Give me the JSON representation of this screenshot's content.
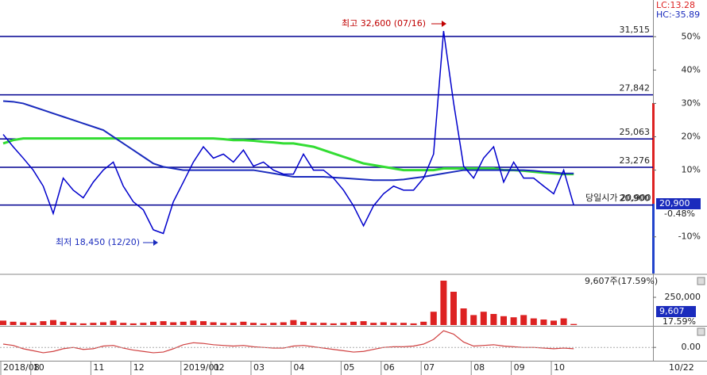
{
  "chart_data": [
    {
      "type": "line",
      "categories": [
        "2018/08",
        null,
        null,
        "10",
        null,
        null,
        null,
        null,
        null,
        "11",
        null,
        null,
        null,
        "12",
        null,
        null,
        null,
        null,
        "2019/01",
        null,
        null,
        "02",
        null,
        null,
        null,
        "03",
        null,
        null,
        null,
        "04",
        null,
        null,
        null,
        null,
        "05",
        null,
        null,
        null,
        "06",
        null,
        null,
        null,
        "07",
        null,
        null,
        null,
        null,
        "08",
        null,
        null,
        null,
        "09",
        null,
        null,
        null,
        "10",
        null,
        null
      ],
      "date_label": "10/22",
      "ylim": [
        -21,
        61
      ],
      "yticks": [
        {
          "value": 50,
          "label": "50%"
        },
        {
          "value": 40,
          "label": "40%"
        },
        {
          "value": 30,
          "label": "30%"
        },
        {
          "value": 20,
          "label": "20%"
        },
        {
          "value": 10,
          "label": "10%"
        },
        {
          "value": -10,
          "label": "-10%"
        }
      ],
      "levels": [
        {
          "value": 50.07,
          "label": "31,515"
        },
        {
          "value": 32.58,
          "label": "27,842"
        },
        {
          "value": 19.35,
          "label": "25,063"
        },
        {
          "value": 10.84,
          "label": "23,276"
        },
        {
          "value": -0.48,
          "label": "20,900"
        }
      ],
      "series": [
        {
          "color": "#33dd33",
          "width": 3,
          "values": [
            18,
            19,
            19.5,
            19.5,
            19.5,
            19.5,
            19.5,
            19.5,
            19.5,
            19.5,
            19.5,
            19.5,
            19.5,
            19.5,
            19.5,
            19.5,
            19.5,
            19.5,
            19.5,
            19.5,
            19.5,
            19.5,
            19.3,
            19,
            19,
            18.8,
            18.5,
            18.3,
            18,
            18,
            17.5,
            17,
            16,
            15,
            14,
            13,
            12,
            11.5,
            11,
            10.5,
            10,
            10,
            10,
            10,
            10.5,
            10.5,
            10.5,
            10.5,
            10.5,
            10.5,
            10,
            10,
            9.8,
            9.5,
            9.2,
            9,
            8.8,
            8.8
          ]
        },
        {
          "color": "#1a2bbd",
          "width": 2,
          "values": [
            30.7,
            30.5,
            30,
            29,
            28,
            27,
            26,
            25,
            24,
            23,
            22,
            20,
            18,
            16,
            14,
            12,
            11,
            10.5,
            10,
            10,
            10,
            10,
            10,
            10,
            10,
            10,
            9.5,
            9,
            8.5,
            8,
            8,
            8,
            8,
            7.8,
            7.6,
            7.4,
            7.2,
            7,
            7,
            7,
            7.2,
            7.6,
            8,
            8.5,
            9,
            9.5,
            10,
            10,
            10,
            10,
            10,
            10,
            10,
            9.8,
            9.5,
            9.3,
            9,
            9
          ]
        },
        {
          "color": "#0000cc",
          "width": 1.5,
          "values": [
            20.7,
            17,
            13.6,
            10,
            5.2,
            -3,
            7.6,
            4,
            1.7,
            6.4,
            10,
            12.4,
            5.2,
            0.5,
            -1.9,
            -7.9,
            -9,
            0.5,
            6.4,
            12.4,
            17,
            13.6,
            14.8,
            12.4,
            16,
            11.2,
            12.4,
            10,
            8.8,
            8.8,
            14.8,
            10,
            10,
            7.6,
            4,
            -0.7,
            -6.7,
            -0.7,
            2.9,
            5.2,
            4,
            4,
            7.6,
            14.8,
            51.7,
            30.2,
            11.2,
            7.6,
            13.6,
            17,
            6.4,
            12.4,
            7.6,
            7.6,
            5.2,
            2.9,
            10,
            -0.48
          ]
        }
      ],
      "high_note": "최고 32,600 (07/16)",
      "low_note": "최저 18,450 (12/20)",
      "open_note": "당일시가 20,900",
      "lc": "LC:13.28",
      "hc": "HC:-35.89",
      "price_box": "20,900",
      "change_label": "-0.48%"
    },
    {
      "type": "bar",
      "color": "#dd2222",
      "ylim": [
        0,
        450000
      ],
      "yticks": [
        {
          "value": 250000,
          "label": "250,000"
        }
      ],
      "values": [
        40000,
        30000,
        25000,
        20000,
        35000,
        45000,
        30000,
        20000,
        15000,
        20000,
        25000,
        40000,
        20000,
        15000,
        20000,
        30000,
        35000,
        25000,
        30000,
        40000,
        35000,
        25000,
        20000,
        20000,
        30000,
        20000,
        15000,
        20000,
        25000,
        45000,
        30000,
        20000,
        20000,
        15000,
        20000,
        30000,
        35000,
        20000,
        25000,
        20000,
        20000,
        15000,
        30000,
        120000,
        400000,
        300000,
        150000,
        90000,
        120000,
        100000,
        80000,
        70000,
        90000,
        60000,
        50000,
        40000,
        60000,
        9607
      ],
      "volume_note": "9,607주(17.59%)",
      "volume_box": "9,607",
      "ratio_label": "17.59%"
    },
    {
      "type": "line",
      "color": "#d04040",
      "ylim": [
        -2,
        3
      ],
      "yticks": [
        {
          "value": 0,
          "label": "0.00"
        }
      ],
      "values": [
        0.5,
        0.3,
        -0.2,
        -0.5,
        -0.8,
        -0.6,
        -0.2,
        0,
        -0.3,
        -0.2,
        0.2,
        0.3,
        -0.1,
        -0.4,
        -0.6,
        -0.8,
        -0.7,
        -0.2,
        0.4,
        0.7,
        0.6,
        0.4,
        0.3,
        0.2,
        0.3,
        0.1,
        0,
        -0.1,
        -0.1,
        0.2,
        0.3,
        0.1,
        -0.1,
        -0.3,
        -0.5,
        -0.7,
        -0.6,
        -0.3,
        0,
        0.1,
        0.1,
        0.2,
        0.5,
        1.2,
        2.5,
        2,
        0.8,
        0.2,
        0.3,
        0.4,
        0.2,
        0.1,
        0,
        0,
        -0.1,
        -0.2,
        -0.1,
        -0.2
      ]
    }
  ]
}
